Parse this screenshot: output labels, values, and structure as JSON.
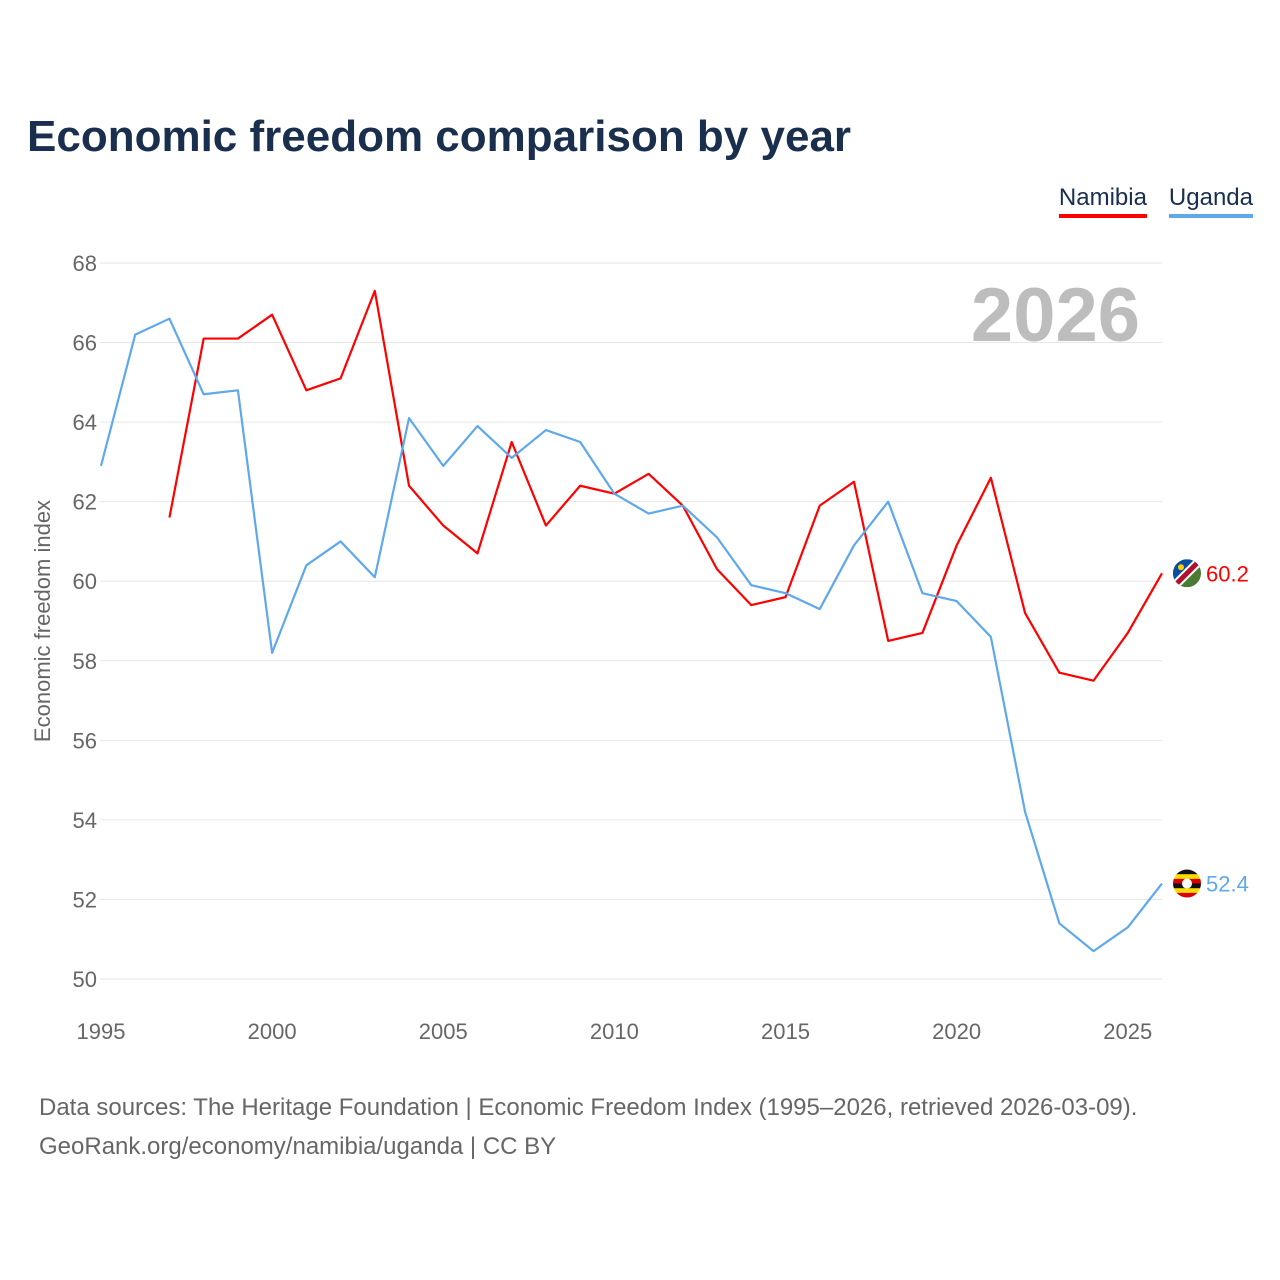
{
  "title": "Economic freedom comparison by year",
  "legend": [
    {
      "label": "Namibia",
      "color": "#ff0000"
    },
    {
      "label": "Uganda",
      "color": "#5ea8ec"
    }
  ],
  "year_watermark": "2026",
  "footer": {
    "line1": "Data sources: The Heritage Foundation | Economic Freedom Index (1995–2026, retrieved 2026-03-09).",
    "line2": "GeoRank.org/economy/namibia/uganda | CC BY"
  },
  "chart_data": {
    "type": "line",
    "title": "Economic freedom comparison by year",
    "xlabel": "",
    "ylabel": "Economic freedom index",
    "xlim": [
      1995,
      2026
    ],
    "ylim": [
      50,
      68
    ],
    "xticks": [
      1995,
      2000,
      2005,
      2010,
      2015,
      2020,
      2025
    ],
    "yticks": [
      50,
      52,
      54,
      56,
      58,
      60,
      62,
      64,
      66,
      68
    ],
    "grid": true,
    "legend_position": "top-right",
    "series": [
      {
        "name": "Namibia",
        "color": "#ff0000",
        "end_label": "60.2",
        "x": [
          1997,
          1998,
          1999,
          2000,
          2001,
          2002,
          2003,
          2004,
          2005,
          2006,
          2007,
          2008,
          2009,
          2010,
          2011,
          2012,
          2013,
          2014,
          2015,
          2016,
          2017,
          2018,
          2019,
          2020,
          2021,
          2022,
          2023,
          2024,
          2025,
          2026
        ],
        "values": [
          61.6,
          66.1,
          66.1,
          66.7,
          64.8,
          65.1,
          67.3,
          62.4,
          61.4,
          60.7,
          63.5,
          61.4,
          62.4,
          62.2,
          62.7,
          61.9,
          60.3,
          59.4,
          59.6,
          61.9,
          62.5,
          58.5,
          58.7,
          60.9,
          62.6,
          59.2,
          57.7,
          57.5,
          58.7,
          60.2
        ]
      },
      {
        "name": "Uganda",
        "color": "#5ea8ec",
        "end_label": "52.4",
        "x": [
          1995,
          1996,
          1997,
          1998,
          1999,
          2000,
          2001,
          2002,
          2003,
          2004,
          2005,
          2006,
          2007,
          2008,
          2009,
          2010,
          2011,
          2012,
          2013,
          2014,
          2015,
          2016,
          2017,
          2018,
          2019,
          2020,
          2021,
          2022,
          2023,
          2024,
          2025,
          2026
        ],
        "values": [
          62.9,
          66.2,
          66.6,
          64.7,
          64.8,
          58.2,
          60.4,
          61.0,
          60.1,
          64.1,
          62.9,
          63.9,
          63.1,
          63.8,
          63.5,
          62.2,
          61.7,
          61.9,
          61.1,
          59.9,
          59.7,
          59.3,
          60.9,
          62.0,
          59.7,
          59.5,
          58.6,
          54.2,
          51.4,
          50.7,
          51.3,
          52.4
        ]
      }
    ]
  }
}
